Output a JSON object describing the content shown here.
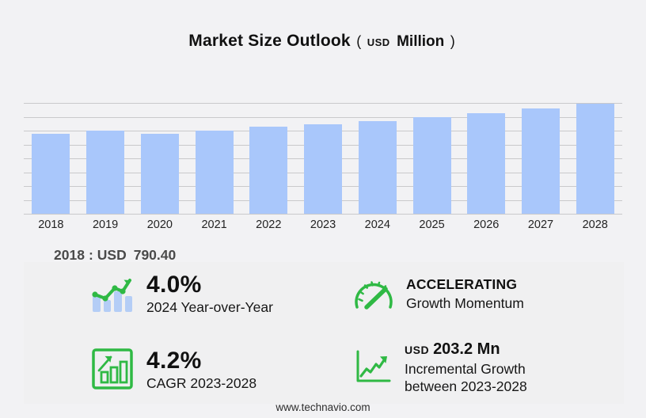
{
  "title": {
    "main": "Market Size Outlook",
    "open_paren": "(",
    "currency": "USD",
    "unit": "Million",
    "close_paren": ")"
  },
  "chart_data": {
    "type": "bar",
    "title": "Market Size Outlook (USD Million)",
    "unit": "USD Million",
    "categories": [
      "2018",
      "2019",
      "2020",
      "2021",
      "2022",
      "2023",
      "2024",
      "2025",
      "2026",
      "2027",
      "2028"
    ],
    "values": [
      790.4,
      822.0,
      791.0,
      822.0,
      861.0,
      884.4,
      919.8,
      957.0,
      998.0,
      1042.0,
      1087.6
    ],
    "labeled_values": {
      "2018": "790.40"
    },
    "ylim": [
      0,
      1096
    ],
    "grid": true,
    "gridline_count": 9,
    "bar_color": "#a9c7fb",
    "xlabel": "",
    "ylabel": ""
  },
  "base_year": {
    "year": "2018",
    "separator": ":",
    "currency": "USD",
    "value": "790.40"
  },
  "stats": [
    {
      "icon": "bar-chart-trend-icon",
      "headline": "4.0%",
      "subtext": "2024 Year-over-Year"
    },
    {
      "icon": "speedometer-icon",
      "headline": "ACCELERATING",
      "subtext": "Growth Momentum"
    },
    {
      "icon": "growth-chart-box-icon",
      "headline": "4.2%",
      "subtext": "CAGR 2023-2028"
    },
    {
      "icon": "incremental-growth-icon",
      "currency": "USD",
      "headline": "203.2 Mn",
      "subtext": "Incremental Growth",
      "subtext2": "between 2023-2028"
    }
  ],
  "footer": {
    "url": "www.technavio.com"
  },
  "colors": {
    "background": "#f2f2f4",
    "panel": "#f0f0f1",
    "bar_blue": "#a9c7fb",
    "icon_bar_blue": "#b4cdf6",
    "accent_green": "#2fb944",
    "gridline": "#c9c9cb",
    "text_dark": "#111111",
    "text_gray": "#4a4a4a"
  }
}
